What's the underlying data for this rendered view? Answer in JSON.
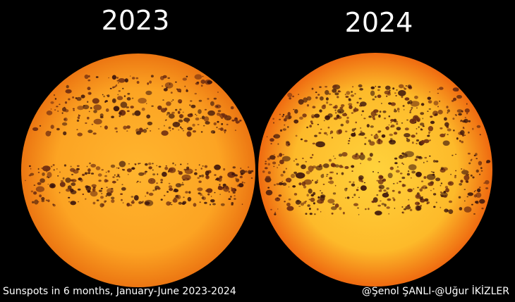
{
  "panels": [
    {
      "label": "2023"
    },
    {
      "label": "2024"
    }
  ],
  "caption": "Sunspots in 6 months, January-June 2023-2024",
  "credit": "@Şenol ŞANLI-@Uğur İKİZLER"
}
